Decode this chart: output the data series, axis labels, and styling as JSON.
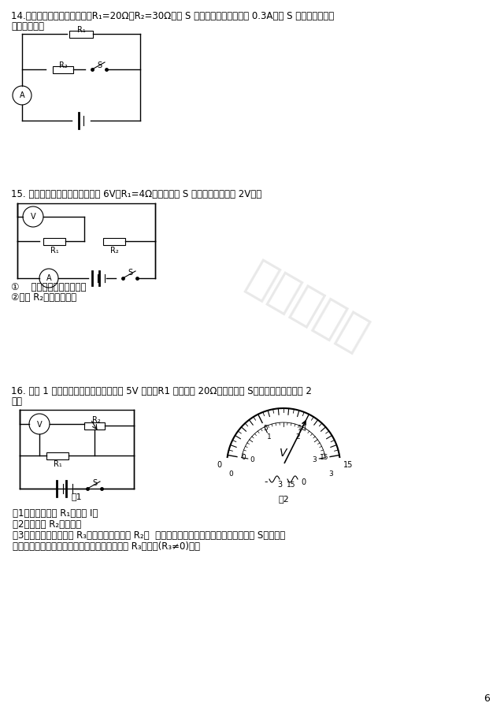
{
  "bg_color": "#ffffff",
  "text_color": "#000000",
  "page_number": "6",
  "q14_text1": "14.如图所示，电源电压不变．R₁=20Ω，R₂=30Ω，当 S 断开时，电流表示数为 0.3A，当 S 闭合时，电流表",
  "q14_text2": "示数为多少？",
  "q15_text": "15. 如图所示电路中，电源电压为 6V，R₁=4Ω，闭合开关 S 后，电压表示数为 2V，则",
  "q15_sub1": "①    电流表的示数为多少？",
  "q15_sub2": "②电阻 R₂的阻值多少？",
  "q16_text1": "16. 在图 1 所示的电路中，电源电压保持 5V 不变，R1 的阻值为 20Ω，闭合电键 S，电压表的示数如图 2",
  "q16_text2": "所示",
  "q16_sub1": "（1）求通过电阻 R₁的电流 I。",
  "q16_sub2": "（2）求电阻 R₂的阻值。",
  "q16_sub3": "（3）用另一个定值电阻 R₃替换电路中的电阻 R₂，  要求电压表选择合适的量程后，闭合电键 S，能使电",
  "q16_sub4": "压表指针偏离零刻度线的角度是原来的一半。求 R₃的阻值(R₃≠0)。，",
  "fig1_label": "图1",
  "fig2_label": "图2",
  "watermark_line1": "非会员水印",
  "watermark_color": "#c0c0c0"
}
